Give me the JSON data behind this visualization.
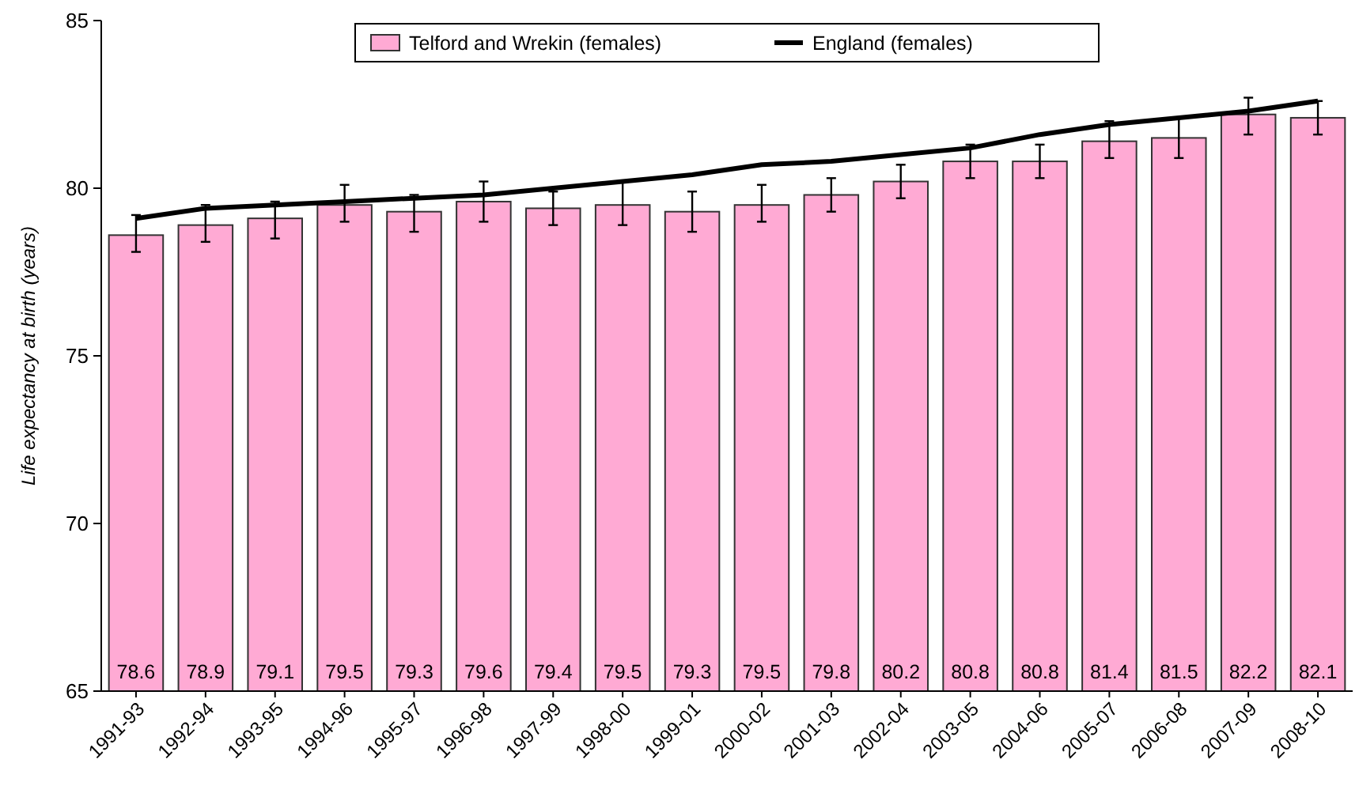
{
  "chart_data": {
    "type": "bar",
    "ylabel": "Life expectancy at birth (years)",
    "categories": [
      "1991-93",
      "1992-94",
      "1993-95",
      "1994-96",
      "1995-97",
      "1996-98",
      "1997-99",
      "1998-00",
      "1999-01",
      "2000-02",
      "2001-03",
      "2002-04",
      "2003-05",
      "2004-06",
      "2005-07",
      "2006-08",
      "2007-09",
      "2008-10"
    ],
    "series": [
      {
        "name": "Telford and Wrekin (females)",
        "color": "#ffaad4",
        "values": [
          78.6,
          78.9,
          79.1,
          79.5,
          79.3,
          79.6,
          79.4,
          79.5,
          79.3,
          79.5,
          79.8,
          80.2,
          80.8,
          80.8,
          81.4,
          81.5,
          82.2,
          82.1
        ],
        "value_labels": [
          "78.6",
          "78.9",
          "79.1",
          "79.5",
          "79.3",
          "79.6",
          "79.4",
          "79.5",
          "79.3",
          "79.5",
          "79.8",
          "80.2",
          "80.8",
          "80.8",
          "81.4",
          "81.5",
          "82.2",
          "82.1"
        ],
        "errors": [
          [
            78.1,
            79.2
          ],
          [
            78.4,
            79.5
          ],
          [
            78.5,
            79.6
          ],
          [
            79.0,
            80.1
          ],
          [
            78.7,
            79.8
          ],
          [
            79.0,
            80.2
          ],
          [
            78.9,
            79.9
          ],
          [
            78.9,
            80.2
          ],
          [
            78.7,
            79.9
          ],
          [
            79.0,
            80.1
          ],
          [
            79.3,
            80.3
          ],
          [
            79.7,
            80.7
          ],
          [
            80.3,
            81.3
          ],
          [
            80.3,
            81.3
          ],
          [
            80.9,
            82.0
          ],
          [
            80.9,
            82.1
          ],
          [
            81.6,
            82.7
          ],
          [
            81.6,
            82.6
          ]
        ]
      },
      {
        "name": "England (females)",
        "type": "line",
        "color": "#000000",
        "values": [
          79.1,
          79.4,
          79.5,
          79.6,
          79.7,
          79.8,
          80.0,
          80.2,
          80.4,
          80.7,
          80.8,
          81.0,
          81.2,
          81.6,
          81.9,
          82.1,
          82.3,
          82.6
        ]
      }
    ],
    "ylim": [
      65,
      85
    ],
    "yticks": [
      65,
      70,
      75,
      80,
      85
    ],
    "legend": "top",
    "grid": false
  }
}
